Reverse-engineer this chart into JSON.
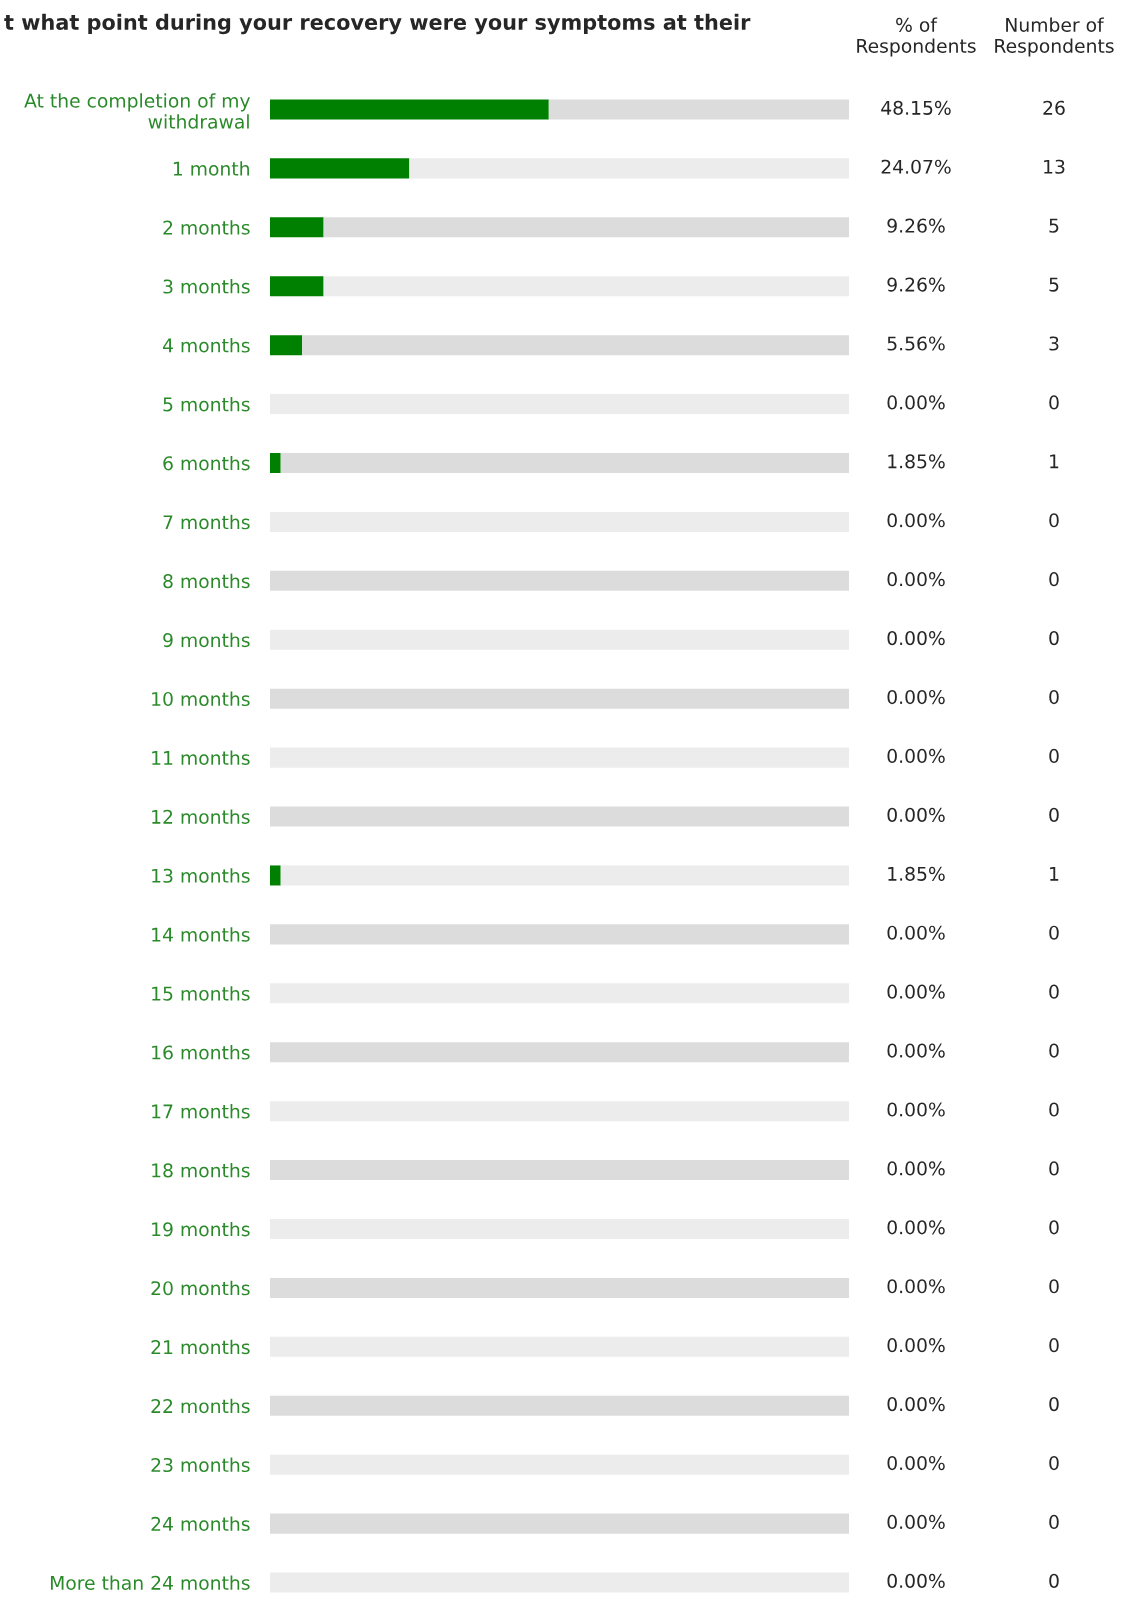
{
  "chart_data": {
    "type": "bar",
    "orientation": "horizontal",
    "stacked": true,
    "title": "t what point during your recovery were your symptoms at their",
    "categories": [
      "At the completion of my\nwithdrawal",
      "1 month",
      "2 months",
      "3 months",
      "4 months",
      "5 months",
      "6 months",
      "7 months",
      "8 months",
      "9 months",
      "10 months",
      "11 months",
      "12 months",
      "13 months",
      "14 months",
      "15 months",
      "16 months",
      "17 months",
      "18 months",
      "19 months",
      "20 months",
      "21 months",
      "22 months",
      "23 months",
      "24 months",
      "More than 24 months"
    ],
    "xlim": [
      0,
      100
    ],
    "tick_labels": "y",
    "series": [
      {
        "color": "#008000",
        "values": [
          48.15,
          24.07,
          9.26,
          9.26,
          5.56,
          0,
          1.85,
          0,
          0,
          0,
          0,
          0,
          0,
          1.85,
          0,
          0,
          0,
          0,
          0,
          0,
          0,
          0,
          0,
          0,
          0,
          0
        ],
        "value_labels": [
          "48.15%",
          "24.07%",
          "9.26%",
          "9.26%",
          "5.56%",
          "0.00%",
          "1.85%",
          "0.00%",
          "0.00%",
          "0.00%",
          "0.00%",
          "0.00%",
          "0.00%",
          "1.85%",
          "0.00%",
          "0.00%",
          "0.00%",
          "0.00%",
          "0.00%",
          "0.00%",
          "0.00%",
          "0.00%",
          "0.00%",
          "0.00%",
          "0.00%",
          "0.00%"
        ]
      },
      {
        "colors": [
          "#dcdcdc",
          "#ececec",
          "#dcdcdc",
          "#ececec",
          "#dcdcdc",
          "#ececec",
          "#dcdcdc",
          "#ececec",
          "#dcdcdc",
          "#ececec",
          "#dcdcdc",
          "#ececec",
          "#dcdcdc",
          "#ececec",
          "#dcdcdc",
          "#ececec",
          "#dcdcdc",
          "#ececec",
          "#dcdcdc",
          "#ececec",
          "#dcdcdc",
          "#ececec",
          "#dcdcdc",
          "#ececec",
          "#dcdcdc",
          "#ececec"
        ],
        "values": [
          51.85,
          75.93,
          90.74,
          90.74,
          94.44,
          100,
          98.15,
          100,
          100,
          100,
          100,
          100,
          100,
          98.15,
          100,
          100,
          100,
          100,
          100,
          100,
          100,
          100,
          100,
          100,
          100,
          100
        ]
      }
    ],
    "annotations": [
      "% of\nRespondents",
      "Number of\nRespondents",
      "26",
      "13",
      "5",
      "5",
      "3",
      "0",
      "1",
      "0",
      "0",
      "0",
      "0",
      "0",
      "0",
      "1",
      "0",
      "0",
      "0",
      "0",
      "0",
      "0",
      "0",
      "0",
      "0",
      "0",
      "0",
      "0"
    ]
  }
}
